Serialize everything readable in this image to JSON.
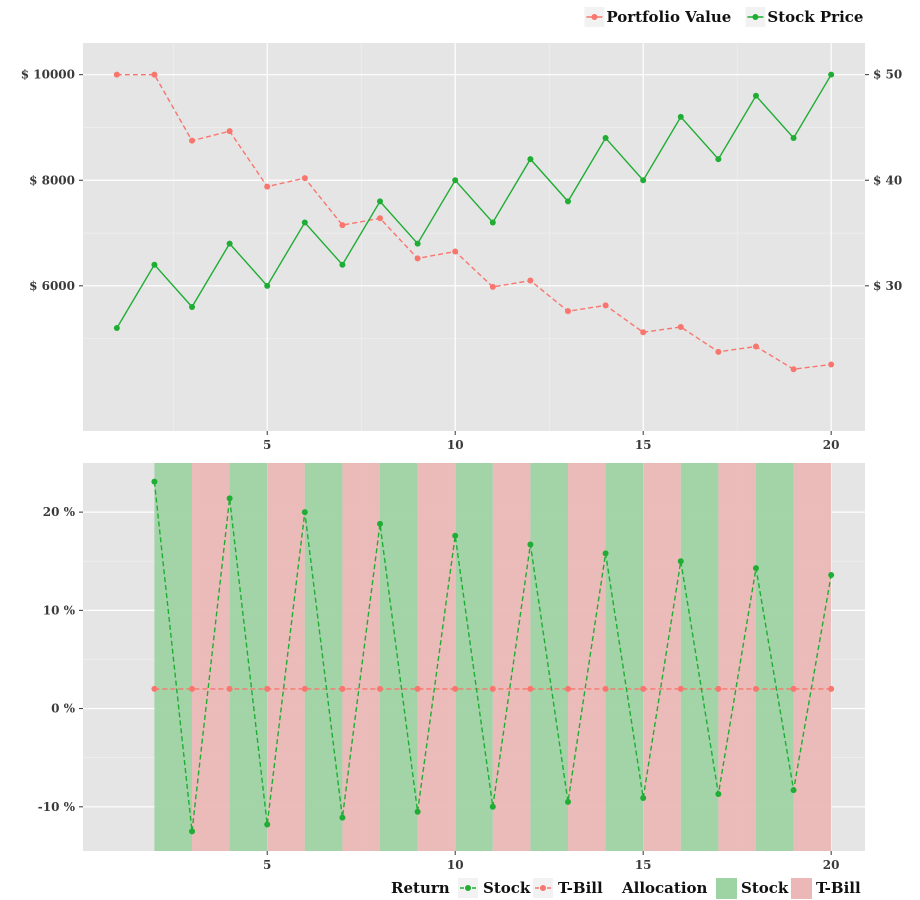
{
  "chart_data": [
    {
      "type": "line",
      "x": [
        1,
        2,
        3,
        4,
        5,
        6,
        7,
        8,
        9,
        10,
        11,
        12,
        13,
        14,
        15,
        16,
        17,
        18,
        19,
        20
      ],
      "series": [
        {
          "name": "Portfolio Value",
          "axis": "left",
          "color": "#f8766d",
          "dashed": true,
          "values": [
            10000,
            10000,
            8750,
            8930,
            7880,
            8040,
            7150,
            7280,
            6520,
            6650,
            5980,
            6100,
            5520,
            5630,
            5120,
            5220,
            4750,
            4850,
            4420,
            4510
          ]
        },
        {
          "name": "Stock Price",
          "axis": "right",
          "color": "#1fad34",
          "dashed": false,
          "values": [
            26,
            32,
            28,
            34,
            30,
            36,
            32,
            38,
            34,
            40,
            36,
            42,
            38,
            44,
            40,
            46,
            42,
            48,
            44,
            50
          ]
        }
      ],
      "xticks": [
        5,
        10,
        15,
        20
      ],
      "xlim": [
        0.1,
        20.9
      ],
      "ylim_left": [
        3250,
        10600
      ],
      "ylim_right": [
        16.25,
        53
      ],
      "yticks_left": [
        {
          "v": 6000,
          "label": "$ 6000"
        },
        {
          "v": 8000,
          "label": "$ 8000"
        },
        {
          "v": 10000,
          "label": "$ 10000"
        }
      ],
      "yticks_right": [
        {
          "v": 30,
          "label": "$ 30"
        },
        {
          "v": 40,
          "label": "$ 40"
        },
        {
          "v": 50,
          "label": "$ 50"
        }
      ],
      "grid": true,
      "legend": {
        "position": "top-right",
        "labels": [
          "Portfolio Value",
          "Stock Price"
        ]
      }
    },
    {
      "type": "line",
      "x": [
        2,
        3,
        4,
        5,
        6,
        7,
        8,
        9,
        10,
        11,
        12,
        13,
        14,
        15,
        16,
        17,
        18,
        19,
        20
      ],
      "series": [
        {
          "name": "Stock",
          "color": "#1fad34",
          "values": [
            23.1,
            -12.5,
            21.4,
            -11.8,
            20.0,
            -11.1,
            18.8,
            -10.5,
            17.6,
            -10.0,
            16.7,
            -9.5,
            15.8,
            -9.1,
            15.0,
            -8.7,
            14.3,
            -8.3,
            13.6
          ]
        },
        {
          "name": "T-Bill",
          "color": "#f8766d",
          "values": [
            2,
            2,
            2,
            2,
            2,
            2,
            2,
            2,
            2,
            2,
            2,
            2,
            2,
            2,
            2,
            2,
            2,
            2,
            2
          ]
        }
      ],
      "allocation": {
        "intervals": [
          {
            "start": 2,
            "end": 3,
            "type": "Stock"
          },
          {
            "start": 3,
            "end": 4,
            "type": "T-Bill"
          },
          {
            "start": 4,
            "end": 5,
            "type": "Stock"
          },
          {
            "start": 5,
            "end": 6,
            "type": "T-Bill"
          },
          {
            "start": 6,
            "end": 7,
            "type": "Stock"
          },
          {
            "start": 7,
            "end": 8,
            "type": "T-Bill"
          },
          {
            "start": 8,
            "end": 9,
            "type": "Stock"
          },
          {
            "start": 9,
            "end": 10,
            "type": "T-Bill"
          },
          {
            "start": 10,
            "end": 11,
            "type": "Stock"
          },
          {
            "start": 11,
            "end": 12,
            "type": "T-Bill"
          },
          {
            "start": 12,
            "end": 13,
            "type": "Stock"
          },
          {
            "start": 13,
            "end": 14,
            "type": "T-Bill"
          },
          {
            "start": 14,
            "end": 15,
            "type": "Stock"
          },
          {
            "start": 15,
            "end": 16,
            "type": "T-Bill"
          },
          {
            "start": 16,
            "end": 17,
            "type": "Stock"
          },
          {
            "start": 17,
            "end": 18,
            "type": "T-Bill"
          },
          {
            "start": 18,
            "end": 19,
            "type": "Stock"
          },
          {
            "start": 19,
            "end": 20,
            "type": "T-Bill"
          }
        ],
        "colors": {
          "Stock": "#9ed3a4",
          "T-Bill": "#ebb8b7"
        }
      },
      "xticks": [
        5,
        10,
        15,
        20
      ],
      "xlim": [
        0.1,
        20.9
      ],
      "ylim": [
        -14.5,
        25
      ],
      "yticks": [
        {
          "v": -10,
          "label": "-10 %"
        },
        {
          "v": 0,
          "label": "0 %"
        },
        {
          "v": 10,
          "label": "10 %"
        },
        {
          "v": 20,
          "label": "20 %"
        }
      ],
      "grid": true,
      "legend": {
        "position": "bottom-right",
        "return_title": "Return",
        "return_labels": [
          "Stock",
          "T-Bill"
        ],
        "allocation_title": "Allocation",
        "allocation_labels": [
          "Stock",
          "T-Bill"
        ]
      }
    }
  ]
}
